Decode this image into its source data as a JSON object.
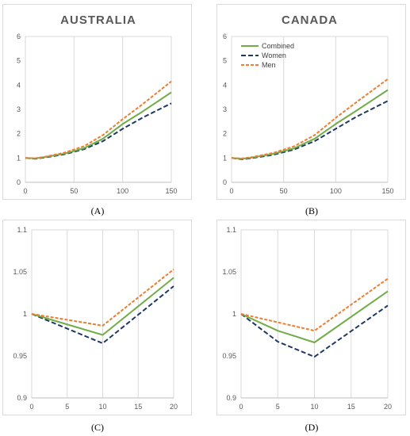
{
  "colors": {
    "combined": "#70ad47",
    "women": "#1f3864",
    "men": "#ed7d31",
    "grid": "#d9d9d9",
    "text": "#595959"
  },
  "captions": [
    "(A)",
    "(B)",
    "(C)",
    "(D)"
  ],
  "legend_labels": [
    "Combined",
    "Women",
    "Men"
  ],
  "chart_data": [
    {
      "type": "line",
      "title": "AUSTRALIA",
      "xlim": [
        0,
        150
      ],
      "ylim": [
        0,
        6
      ],
      "xticks": [
        0,
        50,
        100,
        150
      ],
      "yticks": [
        0,
        1,
        2,
        3,
        4,
        5,
        6
      ],
      "ytick_labels": [
        "0",
        "1",
        "2",
        "3",
        "4",
        "5",
        "6"
      ],
      "grid": "vertical",
      "legend": null,
      "x": [
        0,
        10,
        20,
        40,
        60,
        80,
        100,
        120,
        150
      ],
      "series": [
        {
          "name": "Combined",
          "key": "combined",
          "style": "solid",
          "values": [
            1.0,
            0.98,
            1.04,
            1.18,
            1.4,
            1.8,
            2.4,
            2.9,
            3.7
          ]
        },
        {
          "name": "Women",
          "key": "women",
          "style": "dashed",
          "values": [
            1.0,
            0.97,
            1.02,
            1.15,
            1.36,
            1.7,
            2.2,
            2.65,
            3.25
          ]
        },
        {
          "name": "Men",
          "key": "men",
          "style": "dotted",
          "values": [
            1.0,
            0.99,
            1.05,
            1.22,
            1.48,
            1.95,
            2.6,
            3.2,
            4.15
          ]
        }
      ]
    },
    {
      "type": "line",
      "title": "CANADA",
      "xlim": [
        0,
        150
      ],
      "ylim": [
        0,
        6
      ],
      "xticks": [
        0,
        50,
        100,
        150
      ],
      "yticks": [
        0,
        1,
        2,
        3,
        4,
        5,
        6
      ],
      "ytick_labels": [
        "0",
        "1",
        "2",
        "3",
        "4",
        "5",
        "6"
      ],
      "grid": "vertical",
      "legend": "top-left",
      "x": [
        0,
        10,
        20,
        40,
        60,
        80,
        100,
        120,
        150
      ],
      "series": [
        {
          "name": "Combined",
          "key": "combined",
          "style": "solid",
          "values": [
            1.0,
            0.97,
            1.02,
            1.17,
            1.4,
            1.8,
            2.4,
            2.95,
            3.8
          ]
        },
        {
          "name": "Women",
          "key": "women",
          "style": "dashed",
          "values": [
            1.0,
            0.95,
            1.0,
            1.13,
            1.35,
            1.7,
            2.2,
            2.7,
            3.35
          ]
        },
        {
          "name": "Men",
          "key": "men",
          "style": "dotted",
          "values": [
            1.0,
            0.98,
            1.04,
            1.21,
            1.48,
            1.95,
            2.65,
            3.3,
            4.25
          ]
        }
      ]
    },
    {
      "type": "line",
      "title": "",
      "xlim": [
        0,
        20
      ],
      "ylim": [
        0.9,
        1.1
      ],
      "xticks": [
        0,
        5,
        10,
        15,
        20
      ],
      "yticks": [
        0.9,
        0.95,
        1.0,
        1.05,
        1.1
      ],
      "ytick_labels": [
        "0.9",
        "0.95",
        "1",
        "1.05",
        "1.1"
      ],
      "grid": "vertical",
      "legend": null,
      "x": [
        0,
        10,
        20
      ],
      "series": [
        {
          "name": "Combined",
          "key": "combined",
          "style": "solid",
          "values": [
            1.0,
            0.975,
            1.043
          ]
        },
        {
          "name": "Women",
          "key": "women",
          "style": "dashed",
          "values": [
            1.0,
            0.965,
            1.033
          ]
        },
        {
          "name": "Men",
          "key": "men",
          "style": "dotted",
          "values": [
            1.0,
            0.986,
            1.053
          ]
        }
      ]
    },
    {
      "type": "line",
      "title": "",
      "xlim": [
        0,
        20
      ],
      "ylim": [
        0.9,
        1.1
      ],
      "xticks": [
        0,
        5,
        10,
        15,
        20
      ],
      "yticks": [
        0.9,
        0.95,
        1.0,
        1.05,
        1.1
      ],
      "ytick_labels": [
        "0.9",
        "0.95",
        "1",
        "1.05",
        "1.1"
      ],
      "grid": "vertical",
      "legend": null,
      "x": [
        0,
        5,
        10,
        20
      ],
      "series": [
        {
          "name": "Combined",
          "key": "combined",
          "style": "solid",
          "values": [
            1.0,
            0.98,
            0.966,
            1.027
          ]
        },
        {
          "name": "Women",
          "key": "women",
          "style": "dashed",
          "values": [
            1.0,
            0.967,
            0.949,
            1.01
          ]
        },
        {
          "name": "Men",
          "key": "men",
          "style": "dotted",
          "values": [
            1.0,
            0.99,
            0.98,
            1.042
          ]
        }
      ]
    }
  ]
}
